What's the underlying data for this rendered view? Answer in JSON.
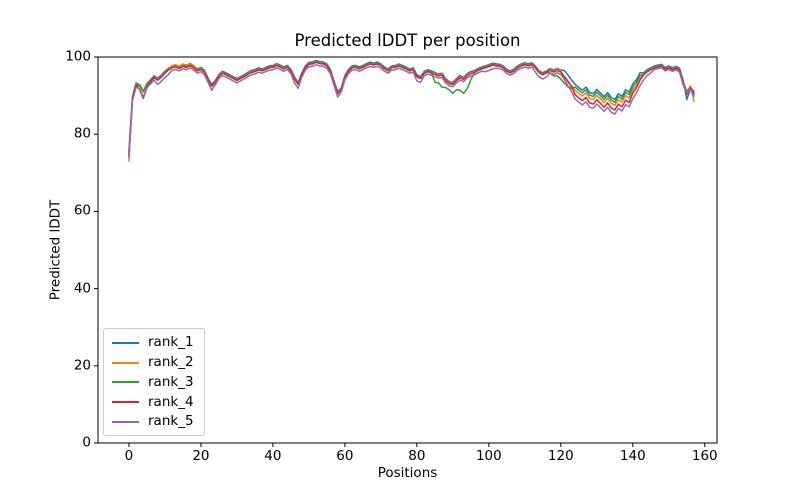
{
  "figure": {
    "title": "Predicted lDDT per position",
    "xlabel": "Positions",
    "ylabel": "Predicted lDDT"
  },
  "chart_data": {
    "type": "line",
    "title": "Predicted lDDT per position",
    "xlabel": "Positions",
    "ylabel": "Predicted lDDT",
    "xlim": [
      -8.6,
      163.4
    ],
    "ylim": [
      0,
      100
    ],
    "x_ticks": [
      0,
      20,
      40,
      60,
      80,
      100,
      120,
      140,
      160
    ],
    "y_ticks": [
      0,
      20,
      40,
      60,
      80,
      100
    ],
    "grid": false,
    "legend_position": "lower left",
    "x_start": 0,
    "x_step": 1,
    "series": [
      {
        "name": "rank_1",
        "color": "#1f77b4",
        "values": [
          75.5,
          89.8,
          93.3,
          92.8,
          91.1,
          93.1,
          94.1,
          95.1,
          94.5,
          95.3,
          96.3,
          97.1,
          97.7,
          97.9,
          97.5,
          98.1,
          97.8,
          98.3,
          97.7,
          96.9,
          97.3,
          96.5,
          94.5,
          92.9,
          93.9,
          95.5,
          96.3,
          95.9,
          95.4,
          94.9,
          94.4,
          94.9,
          95.4,
          96.0,
          96.5,
          96.7,
          97.2,
          96.9,
          97.3,
          97.7,
          97.8,
          98.3,
          97.9,
          97.4,
          97.8,
          96.8,
          94.8,
          93.4,
          95.8,
          97.7,
          98.6,
          98.7,
          99.1,
          98.8,
          98.7,
          98.2,
          96.7,
          93.7,
          91.0,
          92.0,
          95.2,
          96.8,
          97.7,
          97.8,
          97.4,
          97.8,
          98.3,
          98.7,
          98.4,
          98.7,
          98.2,
          97.4,
          96.9,
          97.7,
          97.8,
          98.2,
          97.8,
          97.4,
          96.9,
          97.2,
          95.4,
          94.9,
          96.2,
          96.7,
          96.4,
          96.0,
          95.6,
          95.8,
          94.4,
          93.6,
          93.4,
          94.4,
          95.2,
          94.7,
          95.7,
          96.2,
          96.5,
          97.0,
          97.4,
          97.7,
          98.0,
          98.4,
          98.2,
          98.1,
          97.7,
          96.8,
          96.4,
          96.9,
          97.7,
          98.2,
          98.5,
          98.2,
          98.5,
          97.6,
          96.4,
          95.9,
          96.4,
          97.0,
          96.6,
          97.0,
          96.6,
          96.5,
          95.3,
          94.0,
          92.9,
          92.1,
          91.4,
          92.2,
          90.8,
          90.5,
          91.6,
          90.7,
          89.7,
          90.8,
          89.5,
          89.0,
          90.5,
          89.8,
          91.5,
          90.9,
          93.0,
          94.1,
          95.9,
          95.9,
          96.7,
          97.2,
          97.7,
          97.9,
          98.1,
          97.3,
          97.7,
          97.2,
          97.6,
          97.1,
          93.9,
          89.0,
          91.8,
          90.6
        ]
      },
      {
        "name": "rank_2",
        "color": "#ff7f0e",
        "values": [
          73.0,
          89.5,
          93.0,
          92.5,
          90.8,
          92.8,
          93.8,
          94.8,
          94.2,
          95.0,
          96.0,
          96.8,
          97.8,
          98.0,
          97.6,
          98.2,
          97.9,
          98.4,
          97.8,
          96.6,
          97.0,
          96.2,
          94.2,
          92.6,
          93.6,
          95.2,
          96.0,
          95.6,
          95.1,
          94.6,
          94.1,
          94.6,
          95.1,
          95.7,
          96.2,
          96.4,
          96.9,
          96.6,
          97.0,
          97.4,
          97.5,
          98.0,
          97.6,
          97.1,
          97.5,
          96.5,
          94.5,
          93.1,
          95.5,
          97.4,
          98.3,
          98.4,
          98.8,
          98.5,
          98.4,
          97.9,
          96.4,
          93.4,
          90.7,
          91.7,
          94.9,
          96.5,
          97.4,
          97.5,
          97.1,
          97.5,
          98.0,
          98.4,
          98.1,
          98.4,
          97.9,
          97.1,
          96.6,
          97.4,
          97.5,
          97.9,
          97.5,
          97.1,
          96.6,
          96.9,
          95.1,
          94.6,
          95.9,
          96.4,
          96.1,
          95.7,
          95.3,
          95.5,
          94.1,
          93.3,
          93.1,
          94.1,
          94.9,
          94.4,
          95.4,
          95.9,
          96.2,
          96.7,
          97.1,
          97.4,
          97.7,
          98.1,
          97.9,
          97.8,
          97.4,
          96.5,
          96.1,
          96.6,
          97.4,
          97.9,
          98.2,
          97.9,
          98.2,
          97.3,
          96.1,
          95.6,
          96.1,
          96.7,
          96.3,
          96.7,
          96.3,
          95.0,
          93.8,
          92.5,
          91.4,
          90.6,
          89.9,
          90.7,
          89.3,
          89.0,
          90.1,
          89.2,
          88.2,
          89.3,
          88.0,
          87.5,
          89.0,
          88.3,
          90.0,
          89.4,
          91.5,
          92.6,
          94.4,
          95.6,
          96.4,
          96.9,
          97.4,
          97.6,
          97.8,
          97.0,
          97.4,
          96.9,
          97.3,
          96.8,
          93.6,
          91.1,
          92.5,
          88.5
        ]
      },
      {
        "name": "rank_3",
        "color": "#2ca02c",
        "values": [
          74.6,
          89.4,
          92.9,
          92.4,
          91.3,
          92.7,
          93.7,
          94.7,
          94.1,
          94.9,
          95.9,
          96.7,
          97.3,
          97.5,
          97.1,
          97.7,
          97.4,
          97.9,
          97.3,
          96.5,
          96.9,
          96.1,
          94.1,
          92.5,
          93.5,
          95.1,
          95.9,
          95.5,
          95.0,
          94.5,
          94.0,
          94.5,
          95.0,
          95.6,
          96.1,
          96.3,
          96.8,
          96.5,
          96.9,
          97.3,
          97.4,
          97.9,
          97.5,
          97.0,
          97.4,
          96.4,
          94.4,
          93.0,
          95.4,
          97.3,
          98.2,
          98.3,
          98.7,
          98.4,
          98.3,
          97.8,
          96.3,
          93.3,
          90.6,
          91.6,
          94.8,
          96.4,
          97.3,
          97.4,
          97.0,
          97.4,
          97.9,
          98.3,
          98.0,
          98.3,
          97.8,
          97.0,
          96.5,
          97.3,
          97.4,
          97.8,
          97.4,
          97.0,
          96.5,
          96.8,
          95.0,
          94.5,
          95.8,
          96.3,
          96.0,
          93.5,
          93.3,
          92.2,
          92.1,
          91.5,
          90.6,
          91.5,
          91.4,
          90.6,
          91.8,
          94.1,
          95.9,
          96.6,
          97.0,
          97.3,
          97.6,
          98.0,
          97.8,
          97.7,
          97.3,
          96.4,
          96.0,
          96.5,
          97.3,
          97.8,
          98.1,
          97.8,
          98.1,
          97.2,
          96.0,
          95.5,
          96.0,
          95.9,
          95.1,
          95.1,
          94.3,
          93.2,
          92.3,
          91.9,
          92.2,
          91.4,
          90.7,
          91.5,
          90.1,
          89.8,
          90.9,
          90.0,
          89.0,
          90.1,
          88.8,
          88.3,
          89.8,
          89.1,
          90.8,
          90.2,
          92.3,
          93.4,
          95.2,
          95.5,
          96.3,
          96.8,
          97.3,
          97.5,
          97.7,
          96.9,
          97.3,
          96.8,
          97.2,
          96.7,
          93.5,
          90.9,
          92.1,
          90.4
        ]
      },
      {
        "name": "rank_4",
        "color": "#d62728",
        "values": [
          74.8,
          89.3,
          92.8,
          91.5,
          89.3,
          92.0,
          93.6,
          94.6,
          94.0,
          94.8,
          95.8,
          96.6,
          97.2,
          97.4,
          97.0,
          97.6,
          97.3,
          97.8,
          97.2,
          96.4,
          96.8,
          96.0,
          94.0,
          92.4,
          93.4,
          95.0,
          95.8,
          95.4,
          94.9,
          94.4,
          93.9,
          94.4,
          94.9,
          95.5,
          96.0,
          96.2,
          96.7,
          96.4,
          96.8,
          97.2,
          97.3,
          97.8,
          97.4,
          96.9,
          97.3,
          96.3,
          94.3,
          92.9,
          95.3,
          97.2,
          98.1,
          98.2,
          98.6,
          98.3,
          98.2,
          97.7,
          96.2,
          93.2,
          90.5,
          91.5,
          94.7,
          96.3,
          97.2,
          97.3,
          96.9,
          97.3,
          97.8,
          98.2,
          97.9,
          98.2,
          97.7,
          96.9,
          96.4,
          97.2,
          97.3,
          97.7,
          97.3,
          96.9,
          96.4,
          96.7,
          94.9,
          94.4,
          95.7,
          96.2,
          95.9,
          95.5,
          95.1,
          95.3,
          93.9,
          93.1,
          92.9,
          93.9,
          94.7,
          94.2,
          95.2,
          95.7,
          96.0,
          96.5,
          96.9,
          97.2,
          97.5,
          97.9,
          97.7,
          97.6,
          97.2,
          96.3,
          95.9,
          96.4,
          97.2,
          97.7,
          98.0,
          97.7,
          98.0,
          97.1,
          95.9,
          95.4,
          95.9,
          96.5,
          96.1,
          96.5,
          96.1,
          94.8,
          93.6,
          92.3,
          90.2,
          89.4,
          88.7,
          89.5,
          88.1,
          87.8,
          88.9,
          88.0,
          87.0,
          88.1,
          86.8,
          86.3,
          87.8,
          87.1,
          88.8,
          88.2,
          90.7,
          92.0,
          94.0,
          95.4,
          96.2,
          96.7,
          97.2,
          97.4,
          97.6,
          96.8,
          97.2,
          96.7,
          97.1,
          96.6,
          93.4,
          90.3,
          92.0,
          91.0
        ]
      },
      {
        "name": "rank_5",
        "color": "#9467bd",
        "values": [
          74.0,
          88.7,
          92.2,
          91.7,
          89.6,
          92.0,
          93.0,
          94.0,
          92.9,
          93.7,
          94.7,
          95.5,
          96.6,
          96.8,
          96.4,
          97.0,
          96.7,
          97.2,
          96.6,
          95.8,
          96.2,
          95.4,
          93.4,
          91.4,
          92.8,
          94.4,
          95.2,
          94.8,
          94.3,
          93.8,
          93.3,
          93.8,
          94.3,
          94.9,
          95.4,
          95.6,
          96.1,
          95.8,
          96.2,
          96.6,
          96.7,
          97.2,
          96.8,
          96.3,
          96.7,
          95.7,
          93.3,
          91.9,
          94.7,
          96.6,
          97.5,
          97.6,
          98.0,
          97.7,
          97.6,
          97.1,
          95.6,
          92.6,
          89.6,
          90.9,
          94.1,
          95.7,
          96.6,
          96.7,
          96.3,
          96.7,
          97.2,
          97.6,
          97.3,
          97.6,
          97.1,
          96.3,
          95.8,
          96.6,
          96.7,
          97.1,
          96.7,
          96.3,
          95.8,
          96.1,
          93.8,
          93.4,
          95.1,
          95.6,
          95.3,
          94.9,
          94.5,
          94.7,
          93.3,
          92.5,
          92.3,
          93.3,
          94.1,
          93.6,
          94.6,
          95.1,
          95.4,
          95.9,
          96.3,
          96.2,
          96.5,
          96.9,
          97.1,
          97.0,
          96.6,
          95.7,
          95.3,
          95.8,
          96.6,
          97.1,
          97.4,
          97.1,
          97.4,
          96.0,
          94.8,
          94.3,
          94.8,
          95.9,
          95.5,
          95.9,
          95.5,
          94.2,
          92.5,
          91.0,
          89.1,
          88.3,
          87.6,
          88.4,
          87.0,
          86.7,
          87.8,
          86.9,
          85.9,
          87.0,
          85.7,
          85.2,
          86.7,
          86.0,
          87.7,
          87.1,
          89.2,
          90.6,
          92.6,
          94.1,
          95.2,
          95.9,
          96.8,
          97.0,
          97.2,
          96.4,
          96.8,
          96.3,
          96.7,
          96.0,
          92.8,
          90.7,
          91.7,
          89.9
        ]
      }
    ]
  }
}
